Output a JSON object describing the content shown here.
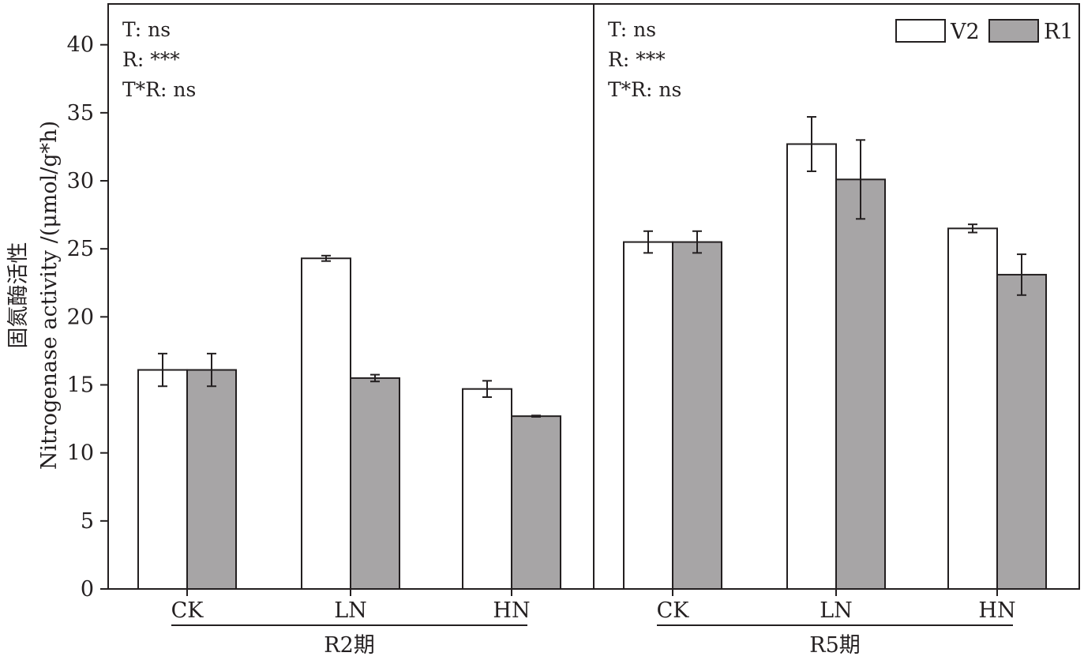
{
  "chart_data": {
    "type": "bar",
    "ylabel_cn": "固氮酶活性",
    "ylabel_en": "Nitrogenase activity /(μmol/g*h)",
    "ylim": [
      0,
      43
    ],
    "yticks": [
      "0",
      "5",
      "10",
      "15",
      "20",
      "25",
      "30",
      "35",
      "40"
    ],
    "legend": {
      "placement": "top-right",
      "entries": [
        {
          "name": "V2",
          "color": "#ffffff"
        },
        {
          "name": "R1",
          "color": "#a7a5a6"
        }
      ]
    },
    "panels": [
      {
        "group_label": "R2期",
        "stats": [
          "T: ns",
          "R: ***",
          "T*R: ns"
        ],
        "categories": [
          "CK",
          "LN",
          "HN"
        ],
        "series": [
          {
            "name": "V2",
            "values": [
              16.1,
              24.3,
              14.7
            ],
            "errors": [
              1.2,
              0.2,
              0.6
            ]
          },
          {
            "name": "R1",
            "values": [
              16.1,
              15.5,
              12.7
            ],
            "errors": [
              1.2,
              0.25,
              0.05
            ]
          }
        ]
      },
      {
        "group_label": "R5期",
        "stats": [
          "T: ns",
          "R: ***",
          "T*R: ns"
        ],
        "categories": [
          "CK",
          "LN",
          "HN"
        ],
        "series": [
          {
            "name": "V2",
            "values": [
              25.5,
              32.7,
              26.5
            ],
            "errors": [
              0.8,
              2.0,
              0.3
            ]
          },
          {
            "name": "R1",
            "values": [
              25.5,
              30.1,
              23.1
            ],
            "errors": [
              0.8,
              2.9,
              1.5
            ]
          }
        ]
      }
    ]
  }
}
